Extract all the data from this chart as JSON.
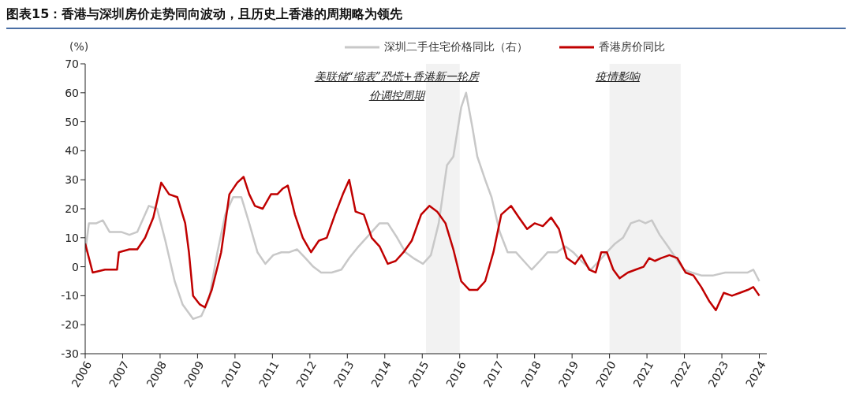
{
  "chart_data": {
    "type": "line",
    "title": "图表15：香港与深圳房价走势同向波动，且历史上香港的周期略为领先",
    "ylabel": "(%)",
    "series": [
      {
        "name": "深圳二手住宅价格同比（右）",
        "color": "#c8c8c8",
        "x": [
          2006.0,
          2006.1,
          2006.3,
          2006.47,
          2006.65,
          2006.96,
          2007.18,
          2007.39,
          2007.7,
          2007.92,
          2008.14,
          2008.39,
          2008.6,
          2008.88,
          2009.1,
          2009.31,
          2009.53,
          2009.74,
          2009.95,
          2010.17,
          2010.38,
          2010.6,
          2010.81,
          2011.02,
          2011.24,
          2011.45,
          2011.66,
          2011.88,
          2012.09,
          2012.3,
          2012.58,
          2012.84,
          2013.05,
          2013.3,
          2013.58,
          2013.86,
          2014.08,
          2014.33,
          2014.55,
          2014.76,
          2015.02,
          2015.23,
          2015.44,
          2015.66,
          2015.83,
          2016.04,
          2016.17,
          2016.34,
          2016.47,
          2016.68,
          2016.85,
          2017.07,
          2017.28,
          2017.5,
          2017.71,
          2017.92,
          2018.14,
          2018.35,
          2018.6,
          2018.82,
          2019.03,
          2019.25,
          2019.5,
          2019.72,
          2019.93,
          2020.15,
          2020.36,
          2020.57,
          2020.79,
          2020.96,
          2021.13,
          2021.34,
          2021.56,
          2021.77,
          2021.98,
          2022.2,
          2022.45,
          2022.77,
          2023.09,
          2023.41,
          2023.69,
          2023.84,
          2024.0
        ],
        "values": [
          5,
          15,
          15,
          16,
          12,
          12,
          11,
          12,
          21,
          20,
          9,
          -5,
          -13,
          -18,
          -17,
          -11,
          5,
          18,
          24,
          24,
          15,
          5,
          1,
          4,
          5,
          5,
          6,
          3,
          0,
          -2,
          -2,
          -1,
          3,
          7,
          11,
          15,
          15,
          10,
          5,
          3,
          1,
          4,
          15,
          35,
          38,
          55,
          60,
          48,
          38,
          30,
          24,
          12,
          5,
          5,
          2,
          -1,
          2,
          5,
          5,
          7,
          5,
          2,
          -1,
          2,
          5,
          8,
          10,
          15,
          16,
          15,
          16,
          11,
          7,
          3,
          -1,
          -2,
          -3,
          -3,
          -2,
          -2,
          -2,
          -1,
          -5
        ]
      },
      {
        "name": "香港房价同比",
        "color": "#c00000",
        "x": [
          2006.0,
          2006.2,
          2006.53,
          2006.85,
          2006.9,
          2007.18,
          2007.39,
          2007.6,
          2007.82,
          2008.03,
          2008.24,
          2008.46,
          2008.67,
          2008.77,
          2008.88,
          2009.06,
          2009.2,
          2009.38,
          2009.63,
          2009.85,
          2010.06,
          2010.23,
          2010.38,
          2010.53,
          2010.74,
          2010.96,
          2011.13,
          2011.28,
          2011.41,
          2011.6,
          2011.81,
          2012.03,
          2012.24,
          2012.45,
          2012.67,
          2012.88,
          2013.05,
          2013.22,
          2013.44,
          2013.65,
          2013.86,
          2014.08,
          2014.29,
          2014.5,
          2014.72,
          2014.97,
          2015.19,
          2015.4,
          2015.62,
          2015.83,
          2016.04,
          2016.26,
          2016.47,
          2016.68,
          2016.9,
          2017.11,
          2017.37,
          2017.58,
          2017.8,
          2018.0,
          2018.22,
          2018.44,
          2018.65,
          2018.86,
          2019.08,
          2019.25,
          2019.46,
          2019.63,
          2019.78,
          2019.93,
          2020.1,
          2020.27,
          2020.49,
          2020.7,
          2020.91,
          2021.06,
          2021.21,
          2021.38,
          2021.6,
          2021.81,
          2022.03,
          2022.24,
          2022.45,
          2022.67,
          2022.84,
          2023.05,
          2023.27,
          2023.48,
          2023.69,
          2023.84,
          2024.0
        ],
        "values": [
          8,
          -2,
          -1,
          -1,
          5,
          6,
          6,
          10,
          17,
          29,
          25,
          24,
          15,
          5,
          -10,
          -13,
          -14,
          -8,
          5,
          25,
          29,
          31,
          25,
          21,
          20,
          25,
          25,
          27,
          28,
          18,
          10,
          5,
          9,
          10,
          18,
          25,
          30,
          19,
          18,
          10,
          7,
          1,
          2,
          5,
          9,
          18,
          21,
          19,
          15,
          6,
          -5,
          -8,
          -8,
          -5,
          5,
          18,
          21,
          17,
          13,
          15,
          14,
          17,
          13,
          3,
          1,
          4,
          -1,
          -2,
          5,
          5,
          -1,
          -4,
          -2,
          -1,
          0,
          3,
          2,
          3,
          4,
          3,
          -2,
          -3,
          -7,
          -12,
          -15,
          -9,
          -10,
          -9,
          -8,
          -7,
          -10
        ]
      }
    ],
    "xlim": [
      2006,
      2024.2
    ],
    "xticks": [
      2006,
      2007,
      2008,
      2009,
      2010,
      2011,
      2012,
      2013,
      2014,
      2015,
      2016,
      2017,
      2018,
      2019,
      2020,
      2021,
      2022,
      2023,
      2024
    ],
    "ylim": [
      -30,
      70
    ],
    "yticks": [
      -30,
      -20,
      -10,
      0,
      10,
      20,
      30,
      40,
      50,
      60,
      70
    ],
    "bands": [
      {
        "axis": "x",
        "from": 2015.1,
        "to": 2016.0,
        "label": "美联储“缩表”恐慌+香港新一轮房价调控周期",
        "color": "#f2f2f2"
      },
      {
        "axis": "x",
        "from": 2020.0,
        "to": 2021.9,
        "label": "疫情影响",
        "color": "#f2f2f2"
      }
    ],
    "grid": false,
    "legend": "top",
    "marker": "none",
    "line_style": "solid"
  }
}
